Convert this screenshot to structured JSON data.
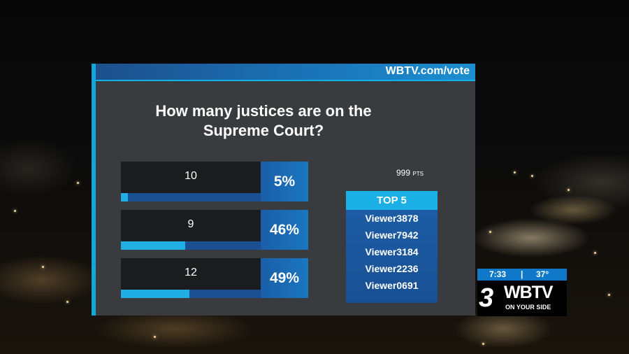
{
  "panel": {
    "url": "WBTV.com/vote",
    "question_line1": "How many justices are on the",
    "question_line2": "Supreme Court?"
  },
  "answers": [
    {
      "label": "10",
      "percent_text": "5%",
      "percent": 5
    },
    {
      "label": "9",
      "percent_text": "46%",
      "percent": 46
    },
    {
      "label": "12",
      "percent_text": "49%",
      "percent": 49
    }
  ],
  "points": {
    "value": "999",
    "unit": "PTS"
  },
  "leaderboard": {
    "title": "TOP 5",
    "entries": [
      "Viewer3878",
      "Viewer7942",
      "Viewer3184",
      "Viewer2236",
      "Viewer0691"
    ]
  },
  "bug": {
    "time": "7:33",
    "separator": "|",
    "temperature": "37°",
    "channel_mark": "3",
    "brand": "WBTV",
    "tagline": "ON YOUR SIDE"
  },
  "colors": {
    "accent": "#10a8d8",
    "panel": "#3a3b3e",
    "bar_fill": "#21aee5",
    "bar_track": "#1a4f92"
  }
}
